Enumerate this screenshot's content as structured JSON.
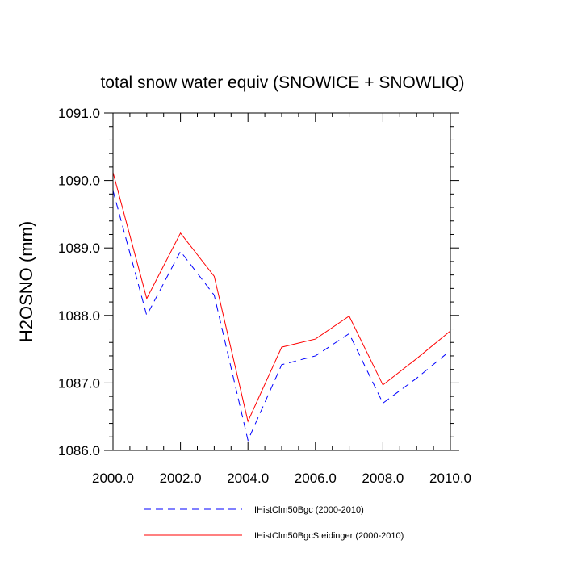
{
  "chart_data": {
    "type": "line",
    "title": "total snow water equiv (SNOWICE + SNOWLIQ)",
    "ylabel": "H2OSNO  (mm)",
    "xlim": [
      2000,
      2010
    ],
    "ylim": [
      1086,
      1091
    ],
    "x_ticks": [
      2000,
      2002,
      2004,
      2006,
      2008,
      2010
    ],
    "x_tick_labels": [
      "2000.0",
      "2002.0",
      "2004.0",
      "2006.0",
      "2008.0",
      "2010.0"
    ],
    "y_ticks": [
      1086,
      1087,
      1088,
      1089,
      1090,
      1091
    ],
    "y_tick_labels": [
      "1086.0",
      "1087.0",
      "1088.0",
      "1089.0",
      "1090.0",
      "1091.0"
    ],
    "grid": false,
    "legend_position": "bottom",
    "x": [
      2000,
      2001,
      2002,
      2003,
      2004,
      2005,
      2006,
      2007,
      2008,
      2009,
      2010
    ],
    "series": [
      {
        "name": "IHistClm50Bgc (2000-2010)",
        "color": "#0000ff",
        "style": "dashed",
        "values": [
          1089.85,
          1088.0,
          1088.95,
          1088.3,
          1086.15,
          1087.27,
          1087.4,
          1087.73,
          1086.7,
          1087.07,
          1087.48
        ]
      },
      {
        "name": "IHistClm50BgcSteidinger (2000-2010)",
        "color": "#ff0000",
        "style": "solid",
        "values": [
          1090.12,
          1088.25,
          1089.22,
          1088.58,
          1086.43,
          1087.53,
          1087.65,
          1087.99,
          1086.97,
          1087.36,
          1087.77
        ]
      }
    ]
  }
}
